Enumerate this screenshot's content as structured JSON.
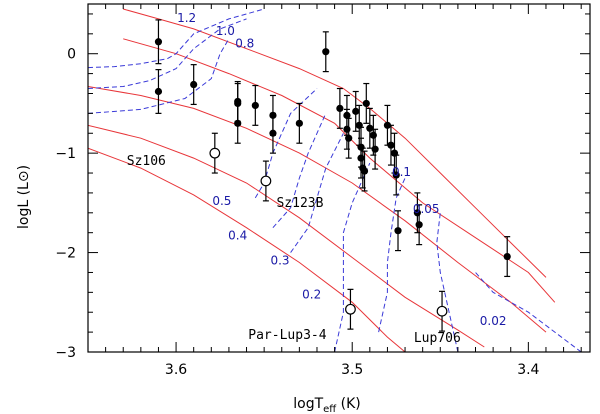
{
  "chart_data": {
    "type": "scatter",
    "title": "",
    "xlabel_main": "logT",
    "xlabel_sub": "eff",
    "xlabel_unit": " (K)",
    "ylabel": "logL (L⊙)",
    "xlim": [
      3.65,
      3.365
    ],
    "ylim": [
      -3.0,
      0.5
    ],
    "x_ticks": [
      3.6,
      3.5,
      3.4
    ],
    "x_tick_labels": [
      "3.6",
      "3.5",
      "3.4"
    ],
    "y_ticks": [
      0,
      -1,
      -2,
      -3
    ],
    "y_tick_labels": [
      "0",
      "−1",
      "−2",
      "−3"
    ],
    "grid": false,
    "legend": "none",
    "colors": {
      "isochrone": "#e8363a",
      "track": "#3a3ad8",
      "track_label": "#1a1aa6",
      "points": "#000000"
    },
    "isochrones": [
      [
        [
          3.63,
          0.45
        ],
        [
          3.61,
          0.35
        ],
        [
          3.59,
          0.25
        ],
        [
          3.56,
          0.05
        ],
        [
          3.53,
          -0.15
        ],
        [
          3.505,
          -0.35
        ],
        [
          3.49,
          -0.55
        ],
        [
          3.47,
          -0.85
        ],
        [
          3.45,
          -1.2
        ],
        [
          3.43,
          -1.55
        ],
        [
          3.41,
          -1.9
        ],
        [
          3.39,
          -2.25
        ]
      ],
      [
        [
          3.63,
          0.15
        ],
        [
          3.6,
          0.0
        ],
        [
          3.57,
          -0.2
        ],
        [
          3.54,
          -0.42
        ],
        [
          3.51,
          -0.7
        ],
        [
          3.49,
          -1.05
        ],
        [
          3.46,
          -1.5
        ],
        [
          3.43,
          -1.85
        ],
        [
          3.4,
          -2.2
        ],
        [
          3.385,
          -2.5
        ]
      ],
      [
        [
          3.65,
          -0.33
        ],
        [
          3.62,
          -0.42
        ],
        [
          3.59,
          -0.55
        ],
        [
          3.56,
          -0.75
        ],
        [
          3.53,
          -1.0
        ],
        [
          3.5,
          -1.3
        ],
        [
          3.47,
          -1.68
        ],
        [
          3.44,
          -2.1
        ],
        [
          3.41,
          -2.5
        ],
        [
          3.39,
          -2.8
        ]
      ],
      [
        [
          3.65,
          -0.72
        ],
        [
          3.62,
          -0.85
        ],
        [
          3.59,
          -1.05
        ],
        [
          3.56,
          -1.3
        ],
        [
          3.53,
          -1.65
        ],
        [
          3.5,
          -2.05
        ],
        [
          3.47,
          -2.45
        ],
        [
          3.44,
          -2.78
        ],
        [
          3.425,
          -2.95
        ]
      ],
      [
        [
          3.65,
          -0.95
        ],
        [
          3.62,
          -1.15
        ],
        [
          3.59,
          -1.42
        ],
        [
          3.56,
          -1.75
        ],
        [
          3.53,
          -2.1
        ],
        [
          3.5,
          -2.5
        ],
        [
          3.48,
          -2.85
        ],
        [
          3.47,
          -3.0
        ]
      ]
    ],
    "tracks": [
      {
        "label": "1.2",
        "points": [
          [
            3.65,
            -0.14
          ],
          [
            3.635,
            -0.13
          ],
          [
            3.62,
            -0.1
          ],
          [
            3.605,
            -0.05
          ],
          [
            3.6,
            0.0
          ],
          [
            3.59,
            0.2
          ],
          [
            3.57,
            0.35
          ],
          [
            3.55,
            0.45
          ]
        ]
      },
      {
        "label": "1.0",
        "points": [
          [
            3.65,
            -0.35
          ],
          [
            3.63,
            -0.33
          ],
          [
            3.615,
            -0.27
          ],
          [
            3.6,
            -0.15
          ],
          [
            3.59,
            0.05
          ],
          [
            3.575,
            0.25
          ],
          [
            3.56,
            0.35
          ]
        ]
      },
      {
        "label": "0.8",
        "points": [
          [
            3.65,
            -0.6
          ],
          [
            3.62,
            -0.56
          ],
          [
            3.595,
            -0.45
          ],
          [
            3.58,
            -0.25
          ],
          [
            3.575,
            0.0
          ],
          [
            3.57,
            0.15
          ]
        ]
      },
      {
        "label": "0.5",
        "points": [
          [
            3.555,
            -1.45
          ],
          [
            3.55,
            -1.3
          ],
          [
            3.545,
            -1.0
          ],
          [
            3.535,
            -0.6
          ],
          [
            3.52,
            -0.35
          ]
        ]
      },
      {
        "label": "0.4",
        "points": [
          [
            3.545,
            -1.75
          ],
          [
            3.535,
            -1.55
          ],
          [
            3.53,
            -1.25
          ],
          [
            3.525,
            -1.0
          ],
          [
            3.515,
            -0.6
          ]
        ]
      },
      {
        "label": "0.3",
        "points": [
          [
            3.535,
            -2.0
          ],
          [
            3.525,
            -1.75
          ],
          [
            3.52,
            -1.45
          ],
          [
            3.515,
            -1.15
          ],
          [
            3.505,
            -0.8
          ]
        ]
      },
      {
        "label": "0.2",
        "points": [
          [
            3.51,
            -3.0
          ],
          [
            3.505,
            -2.6
          ],
          [
            3.505,
            -2.2
          ],
          [
            3.505,
            -1.8
          ],
          [
            3.5,
            -1.5
          ],
          [
            3.49,
            -1.1
          ]
        ]
      },
      {
        "label": "0.1",
        "points": [
          [
            3.485,
            -2.8
          ],
          [
            3.48,
            -2.4
          ],
          [
            3.48,
            -2.1
          ],
          [
            3.478,
            -1.8
          ],
          [
            3.475,
            -1.45
          ],
          [
            3.47,
            -1.25
          ]
        ]
      },
      {
        "label": "0.05",
        "points": [
          [
            3.44,
            -3.0
          ],
          [
            3.445,
            -2.6
          ],
          [
            3.45,
            -2.2
          ],
          [
            3.452,
            -1.9
          ],
          [
            3.45,
            -1.6
          ]
        ]
      },
      {
        "label": "0.02",
        "points": [
          [
            3.37,
            -3.0
          ],
          [
            3.4,
            -2.6
          ],
          [
            3.42,
            -2.4
          ],
          [
            3.43,
            -2.2
          ]
        ]
      }
    ],
    "track_label_positions": [
      {
        "label": "1.2",
        "x": 3.594,
        "y": 0.32
      },
      {
        "label": "1.0",
        "x": 3.572,
        "y": 0.19
      },
      {
        "label": "0.8",
        "x": 3.561,
        "y": 0.06
      },
      {
        "label": "0.5",
        "x": 3.574,
        "y": -1.52
      },
      {
        "label": "0.4",
        "x": 3.565,
        "y": -1.87
      },
      {
        "label": "0.3",
        "x": 3.541,
        "y": -2.12
      },
      {
        "label": "0.2",
        "x": 3.523,
        "y": -2.46
      },
      {
        "label": "0.1",
        "x": 3.472,
        "y": -1.23
      },
      {
        "label": "0.05",
        "x": 3.458,
        "y": -1.6
      },
      {
        "label": "0.02",
        "x": 3.42,
        "y": -2.73
      }
    ],
    "stars": [
      {
        "x": 3.61,
        "y": 0.12,
        "err": 0.22
      },
      {
        "x": 3.61,
        "y": -0.38,
        "err": 0.22
      },
      {
        "x": 3.59,
        "y": -0.31,
        "err": 0.2
      },
      {
        "x": 3.565,
        "y": -0.48,
        "err": 0.2
      },
      {
        "x": 3.565,
        "y": -0.5,
        "err": 0.2
      },
      {
        "x": 3.565,
        "y": -0.7,
        "err": 0.2
      },
      {
        "x": 3.555,
        "y": -0.52,
        "err": 0.2
      },
      {
        "x": 3.545,
        "y": -0.62,
        "err": 0.2
      },
      {
        "x": 3.545,
        "y": -0.8,
        "err": 0.2
      },
      {
        "x": 3.53,
        "y": -0.7,
        "err": 0.2
      },
      {
        "x": 3.515,
        "y": 0.02,
        "err": 0.2
      },
      {
        "x": 3.507,
        "y": -0.55,
        "err": 0.2
      },
      {
        "x": 3.503,
        "y": -0.62,
        "err": 0.2
      },
      {
        "x": 3.503,
        "y": -0.76,
        "err": 0.2
      },
      {
        "x": 3.502,
        "y": -0.85,
        "err": 0.2
      },
      {
        "x": 3.498,
        "y": -0.58,
        "err": 0.2
      },
      {
        "x": 3.496,
        "y": -0.72,
        "err": 0.2
      },
      {
        "x": 3.495,
        "y": -0.94,
        "err": 0.2
      },
      {
        "x": 3.495,
        "y": -1.05,
        "err": 0.2
      },
      {
        "x": 3.494,
        "y": -1.15,
        "err": 0.2
      },
      {
        "x": 3.493,
        "y": -1.18,
        "err": 0.2
      },
      {
        "x": 3.492,
        "y": -0.5,
        "err": 0.2
      },
      {
        "x": 3.49,
        "y": -0.75,
        "err": 0.2
      },
      {
        "x": 3.488,
        "y": -0.82,
        "err": 0.2
      },
      {
        "x": 3.487,
        "y": -0.96,
        "err": 0.2
      },
      {
        "x": 3.48,
        "y": -0.72,
        "err": 0.2
      },
      {
        "x": 3.478,
        "y": -0.92,
        "err": 0.2
      },
      {
        "x": 3.476,
        "y": -1.0,
        "err": 0.2
      },
      {
        "x": 3.475,
        "y": -1.22,
        "err": 0.2
      },
      {
        "x": 3.474,
        "y": -1.78,
        "err": 0.2
      },
      {
        "x": 3.463,
        "y": -1.6,
        "err": 0.2
      },
      {
        "x": 3.462,
        "y": -1.72,
        "err": 0.2
      },
      {
        "x": 3.412,
        "y": -2.04,
        "err": 0.2
      }
    ],
    "labeled_stars": [
      {
        "name": "Sz106",
        "x": 3.578,
        "y": -1.0,
        "err": 0.2,
        "label_x": 3.628,
        "label_y": -1.12
      },
      {
        "name": "Sz123B",
        "x": 3.549,
        "y": -1.28,
        "err": 0.2,
        "label_x": 3.543,
        "label_y": -1.54
      },
      {
        "name": "Par-Lup3-4",
        "x": 3.501,
        "y": -2.57,
        "err": 0.2,
        "label_x": 3.559,
        "label_y": -2.87
      },
      {
        "name": "Lup706",
        "x": 3.449,
        "y": -2.59,
        "err": 0.2,
        "label_x": 3.465,
        "label_y": -2.9
      }
    ]
  }
}
